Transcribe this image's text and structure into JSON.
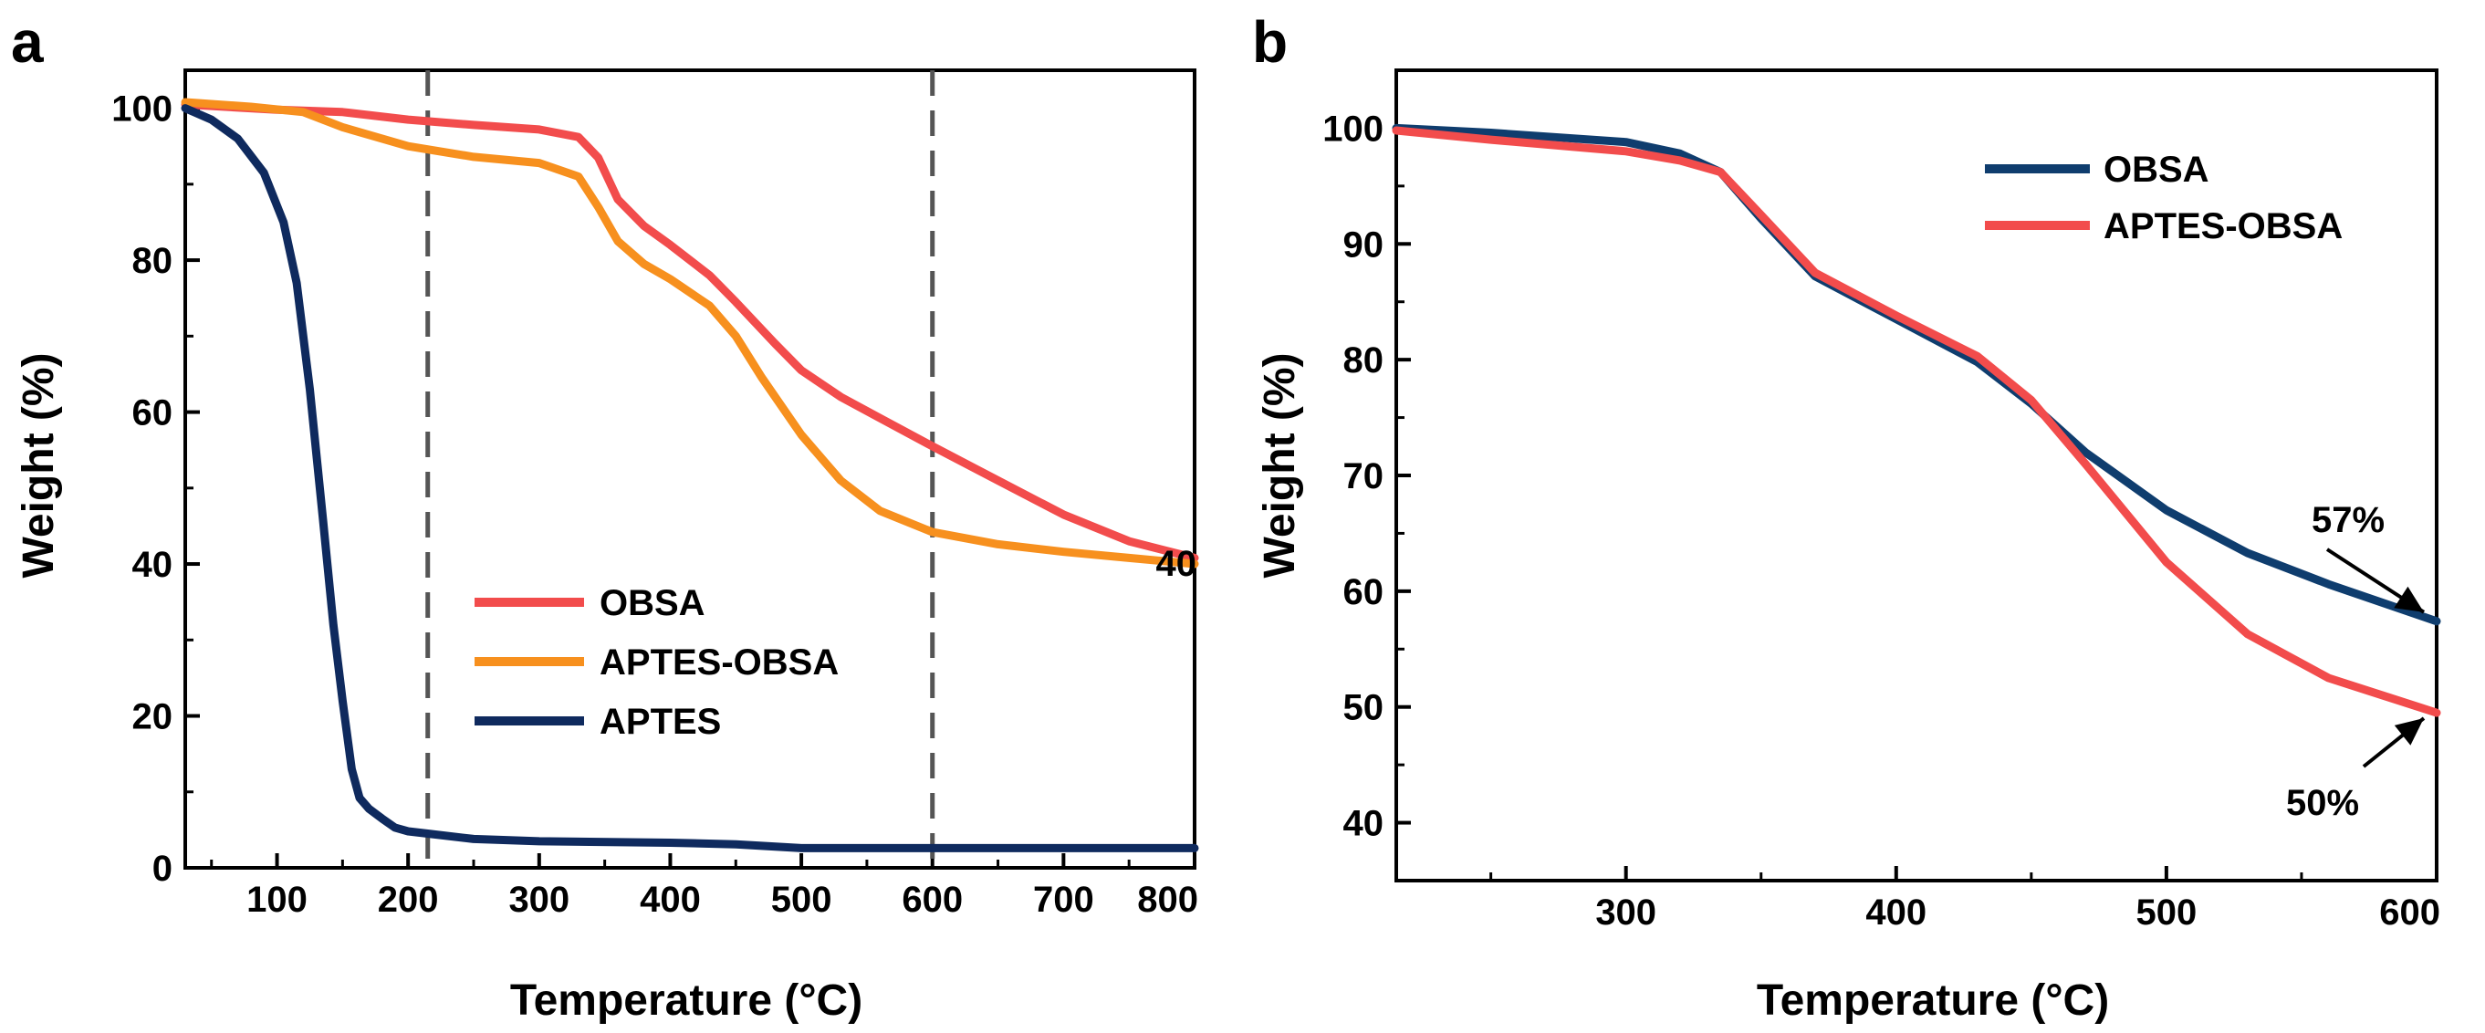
{
  "chart_data": [
    {
      "type": "line",
      "panel_label": "a",
      "xlabel": "Temperature (°C)",
      "ylabel": "Weight (%)",
      "xlim": [
        30,
        800
      ],
      "ylim": [
        0,
        105
      ],
      "xticks": [
        100,
        200,
        300,
        400,
        500,
        600,
        700,
        800
      ],
      "yticks": [
        0,
        20,
        40,
        60,
        80,
        100
      ],
      "vlines": [
        215,
        600
      ],
      "legend_position": "center-right",
      "series": [
        {
          "name": "OBSA",
          "color": "#f24c4c",
          "x": [
            30,
            100,
            150,
            200,
            250,
            300,
            330,
            345,
            360,
            380,
            400,
            430,
            450,
            480,
            500,
            530,
            560,
            600,
            650,
            700,
            750,
            800
          ],
          "y": [
            100.5,
            99.8,
            99.5,
            98.5,
            97.8,
            97.2,
            96.2,
            93.5,
            88,
            84.5,
            82,
            78,
            74.5,
            69,
            65.5,
            62,
            59.2,
            55.5,
            51,
            46.5,
            43,
            40.8
          ]
        },
        {
          "name": "APTES-OBSA",
          "color": "#f7901e",
          "x": [
            30,
            80,
            120,
            150,
            200,
            250,
            300,
            330,
            345,
            360,
            380,
            400,
            430,
            450,
            470,
            500,
            530,
            560,
            600,
            650,
            700,
            750,
            800
          ],
          "y": [
            100.8,
            100.2,
            99.5,
            97.5,
            95,
            93.6,
            92.8,
            91,
            87,
            82.5,
            79.5,
            77.5,
            74,
            70,
            64.5,
            57,
            51,
            47,
            44.2,
            42.6,
            41.6,
            40.8,
            40
          ],
          "end_label": "40"
        },
        {
          "name": "APTES",
          "color": "#0f2a5e",
          "x": [
            30,
            50,
            70,
            90,
            105,
            115,
            125,
            135,
            143,
            150,
            157,
            163,
            170,
            180,
            190,
            200,
            215,
            250,
            300,
            400,
            450,
            500,
            600,
            700,
            800
          ],
          "y": [
            100,
            98.5,
            96,
            91.5,
            85,
            77,
            63,
            46,
            32,
            22,
            13,
            9.2,
            7.8,
            6.5,
            5.3,
            4.8,
            4.5,
            3.8,
            3.5,
            3.3,
            3.1,
            2.6,
            2.6,
            2.6,
            2.6
          ]
        }
      ]
    },
    {
      "type": "line",
      "panel_label": "b",
      "xlabel": "Temperature (°C)",
      "ylabel": "Weight (%)",
      "xlim": [
        215,
        600
      ],
      "ylim": [
        35,
        105
      ],
      "xticks": [
        300,
        400,
        500,
        600
      ],
      "yticks": [
        40,
        50,
        60,
        70,
        80,
        90,
        100
      ],
      "legend_position": "top-right",
      "series": [
        {
          "name": "OBSA",
          "color": "#0f3d6e",
          "x": [
            215,
            250,
            300,
            320,
            335,
            350,
            370,
            400,
            430,
            450,
            470,
            500,
            530,
            560,
            600
          ],
          "y": [
            100,
            99.6,
            98.8,
            97.8,
            96.2,
            92.2,
            87.2,
            83.5,
            79.8,
            76.2,
            72,
            67,
            63.3,
            60.6,
            57.4
          ]
        },
        {
          "name": "APTES-OBSA",
          "color": "#f24c4c",
          "x": [
            215,
            250,
            300,
            320,
            335,
            350,
            370,
            400,
            430,
            450,
            470,
            500,
            530,
            560,
            600
          ],
          "y": [
            99.8,
            99,
            98,
            97.2,
            96.2,
            92.5,
            87.5,
            83.8,
            80.3,
            76.5,
            71,
            62.5,
            56.3,
            52.5,
            49.5
          ]
        }
      ],
      "annotations": [
        {
          "text": "57%",
          "target": [
            600,
            57.4
          ]
        },
        {
          "text": "50%",
          "target": [
            600,
            49.5
          ]
        }
      ]
    }
  ]
}
